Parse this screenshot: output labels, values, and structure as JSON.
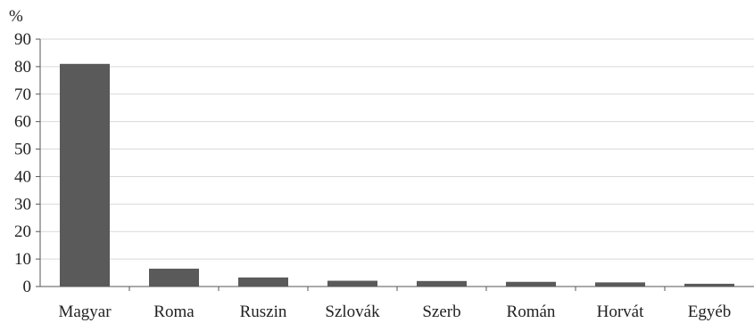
{
  "chart_data": {
    "type": "bar",
    "unit_label": "%",
    "categories": [
      "Magyar",
      "Roma",
      "Ruszin",
      "Szlovák",
      "Szerb",
      "Román",
      "Horvát",
      "Egyéb"
    ],
    "values": [
      81,
      6.5,
      3.3,
      2.1,
      2.0,
      1.7,
      1.5,
      1.0
    ],
    "ylim": [
      0,
      90
    ],
    "yticks": [
      0,
      10,
      20,
      30,
      40,
      50,
      60,
      70,
      80,
      90
    ],
    "grid": true,
    "colors": {
      "bar": "#5a5a5a",
      "grid": "#d9d9d9",
      "axis": "#555555"
    }
  }
}
